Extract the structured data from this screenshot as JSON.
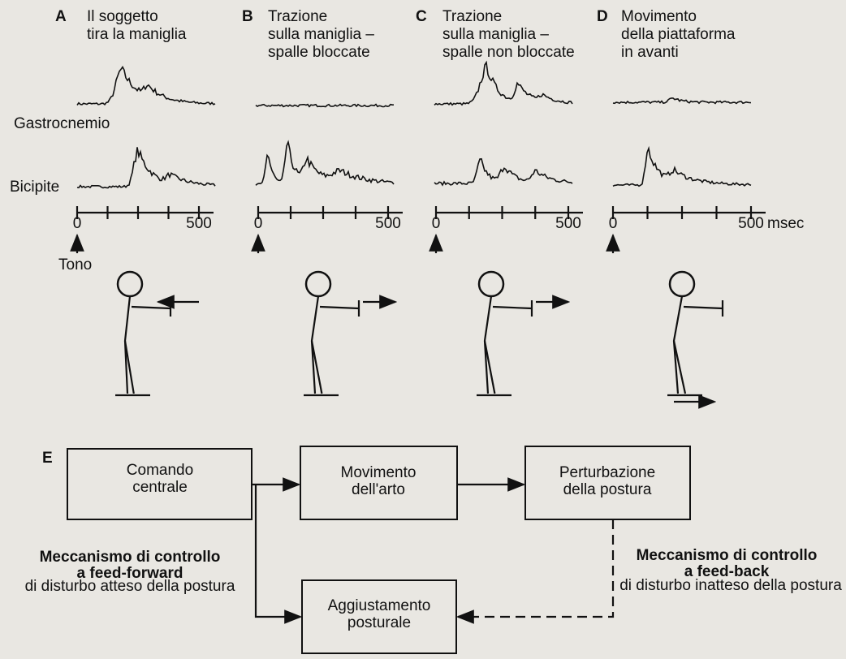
{
  "panels": [
    {
      "letter": "A",
      "title": [
        "Il soggetto",
        "tira la maniglia"
      ]
    },
    {
      "letter": "B",
      "title": [
        "Trazione",
        "sulla maniglia –",
        "spalle bloccate"
      ]
    },
    {
      "letter": "C",
      "title": [
        "Trazione",
        "sulla maniglia –",
        "spalle non bloccate"
      ]
    },
    {
      "letter": "D",
      "title": [
        "Movimento",
        "della piattaforma",
        "in avanti"
      ]
    }
  ],
  "muscles": [
    "Gastrocnemio",
    "Bicipite"
  ],
  "time_axis": {
    "start": 0,
    "end": 500,
    "unit": "msec"
  },
  "tone_label": "Tono",
  "diagram": {
    "letter": "E",
    "boxes": [
      {
        "label": [
          "Comando",
          "centrale"
        ]
      },
      {
        "label": [
          "Movimento",
          "dell'arto"
        ]
      },
      {
        "label": [
          "Perturbazione",
          "della postura"
        ]
      },
      {
        "label": [
          "Aggiustamento",
          "posturale"
        ]
      }
    ],
    "feed_forward": {
      "title": [
        "Meccanismo di controllo",
        "a feed-forward"
      ],
      "subtitle": "di disturbo atteso della postura"
    },
    "feed_back": {
      "title": [
        "Meccanismo di controllo",
        "a feed-back"
      ],
      "subtitle": "di disturbo inatteso della postura"
    }
  }
}
